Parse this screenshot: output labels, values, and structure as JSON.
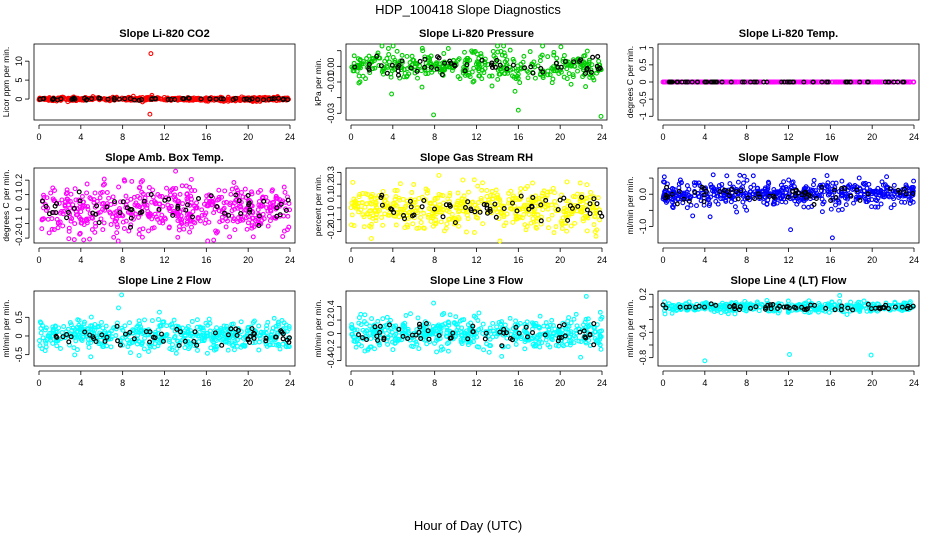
{
  "title": "HDP_100418  Slope Diagnostics",
  "xlabel": "Hour of Day (UTC)",
  "chart_data": [
    {
      "type": "scatter",
      "title": "Slope Li-820 CO2",
      "ylabel": "Licor ppm per min.",
      "color": "#ff0000",
      "baseline_color": "#000000",
      "xlim": [
        0,
        24
      ],
      "x_ticks": [
        0,
        4,
        8,
        12,
        16,
        20,
        24
      ],
      "ylim": [
        -5,
        14
      ],
      "y_ticks": [
        0,
        5,
        10
      ],
      "noise_sd": 0.25,
      "n_points": 500,
      "outliers": [
        {
          "x": 10.7,
          "y": 12
        },
        {
          "x": 10.8,
          "y": 1.0
        },
        {
          "x": 10.6,
          "y": -4
        }
      ]
    },
    {
      "type": "scatter",
      "title": "Slope Li-820 Pressure",
      "ylabel": "kPa per min.",
      "color": "#00cc00",
      "baseline_color": "#000000",
      "xlim": [
        0,
        24
      ],
      "x_ticks": [
        0,
        4,
        8,
        12,
        16,
        20,
        24
      ],
      "ylim": [
        -0.033,
        0.013
      ],
      "y_ticks": [
        -0.03,
        -0.02,
        -0.01,
        0.0,
        0.01
      ],
      "y_tick_labels": [
        "-0.03",
        "",
        "-0.01",
        "0.00",
        ""
      ],
      "noise_sd": 0.005,
      "n_points": 400,
      "outliers": [
        {
          "x": 7.9,
          "y": -0.031
        },
        {
          "x": 23.9,
          "y": -0.032
        },
        {
          "x": 16.0,
          "y": -0.028
        }
      ]
    },
    {
      "type": "scatter",
      "title": "Slope Li-820 Temp.",
      "ylabel": "degrees C per min.",
      "color": "#ff00ff",
      "baseline_color": "#000000",
      "xlim": [
        0,
        24
      ],
      "x_ticks": [
        0,
        4,
        8,
        12,
        16,
        20,
        24
      ],
      "ylim": [
        -1.05,
        1.05
      ],
      "y_ticks": [
        -1.0,
        -0.5,
        0.0,
        0.5,
        1.0
      ],
      "noise_sd": 0.0,
      "n_points": 300,
      "outliers": []
    },
    {
      "type": "scatter",
      "title": "Slope Amb. Box Temp.",
      "ylabel": "degrees C per min.",
      "color": "#ff00ff",
      "baseline_color": "#000000",
      "xlim": [
        0,
        24
      ],
      "x_ticks": [
        0,
        4,
        8,
        12,
        16,
        20,
        24
      ],
      "ylim": [
        -0.22,
        0.27
      ],
      "y_ticks": [
        -0.2,
        -0.1,
        0.0,
        0.1,
        0.2
      ],
      "noise_sd": 0.09,
      "n_points": 520,
      "outliers": []
    },
    {
      "type": "scatter",
      "title": "Slope Gas Stream RH",
      "ylabel": "percent per min.",
      "color": "#ffff00",
      "baseline_color": "#000000",
      "xlim": [
        0,
        24
      ],
      "x_ticks": [
        0,
        4,
        8,
        12,
        16,
        20,
        24
      ],
      "ylim": [
        -0.28,
        0.32
      ],
      "y_ticks": [
        -0.2,
        -0.1,
        0.0,
        0.1,
        0.2,
        0.3
      ],
      "noise_sd": 0.09,
      "n_points": 520,
      "outliers": []
    },
    {
      "type": "scatter",
      "title": "Slope Sample Flow",
      "ylabel": "ml/min per min.",
      "color": "#0000ff",
      "baseline_color": "#000000",
      "xlim": [
        0,
        24
      ],
      "x_ticks": [
        0,
        4,
        8,
        12,
        16,
        20,
        24
      ],
      "ylim": [
        -1.45,
        0.75
      ],
      "y_ticks": [
        -1.0,
        -0.5,
        0.0,
        0.5
      ],
      "y_tick_labels": [
        "-1.0",
        "",
        "0.0",
        ""
      ],
      "noise_sd": 0.2,
      "n_points": 520,
      "outliers": [
        {
          "x": 4.8,
          "y": 0.6
        },
        {
          "x": 12.2,
          "y": -1.1
        },
        {
          "x": 16.2,
          "y": -1.35
        },
        {
          "x": 4.5,
          "y": -0.7
        }
      ]
    },
    {
      "type": "scatter",
      "title": "Slope Line 2 Flow",
      "ylabel": "ml/min per min.",
      "color": "#00ffff",
      "baseline_color": "#000000",
      "xlim": [
        0,
        24
      ],
      "x_ticks": [
        0,
        4,
        8,
        12,
        16,
        20,
        24
      ],
      "ylim": [
        -0.75,
        1.15
      ],
      "y_ticks": [
        -0.5,
        0.0,
        0.5
      ],
      "noise_sd": 0.2,
      "n_points": 520,
      "outliers": [
        {
          "x": 7.9,
          "y": 1.1
        },
        {
          "x": 7.6,
          "y": 0.75
        }
      ]
    },
    {
      "type": "scatter",
      "title": "Slope Line 3 Flow",
      "ylabel": "ml/min per min.",
      "color": "#00ffff",
      "baseline_color": "#000000",
      "xlim": [
        0,
        24
      ],
      "x_ticks": [
        0,
        4,
        8,
        12,
        16,
        20,
        24
      ],
      "ylim": [
        -0.45,
        0.6
      ],
      "y_ticks": [
        -0.4,
        -0.2,
        0.0,
        0.2,
        0.4
      ],
      "noise_sd": 0.12,
      "n_points": 520,
      "outliers": [
        {
          "x": 22.5,
          "y": 0.55
        },
        {
          "x": 7.9,
          "y": 0.45
        }
      ]
    },
    {
      "type": "scatter",
      "title": "Slope Line 4 (LT) Flow",
      "ylabel": "ml/min per min.",
      "color": "#00ffff",
      "baseline_color": "#000000",
      "xlim": [
        0,
        24
      ],
      "x_ticks": [
        0,
        4,
        8,
        12,
        16,
        20,
        24
      ],
      "ylim": [
        -0.9,
        0.22
      ],
      "y_ticks": [
        -0.8,
        -0.6,
        -0.4,
        -0.2,
        0.0,
        0.2
      ],
      "y_tick_labels": [
        "-0.8",
        "",
        "-0.4",
        "",
        "",
        "0.2"
      ],
      "noise_sd": 0.04,
      "n_points": 420,
      "outliers": [
        {
          "x": 4.0,
          "y": -0.85
        },
        {
          "x": 12.1,
          "y": -0.75
        },
        {
          "x": 19.9,
          "y": -0.76
        },
        {
          "x": 16.9,
          "y": 0.18
        }
      ]
    }
  ]
}
